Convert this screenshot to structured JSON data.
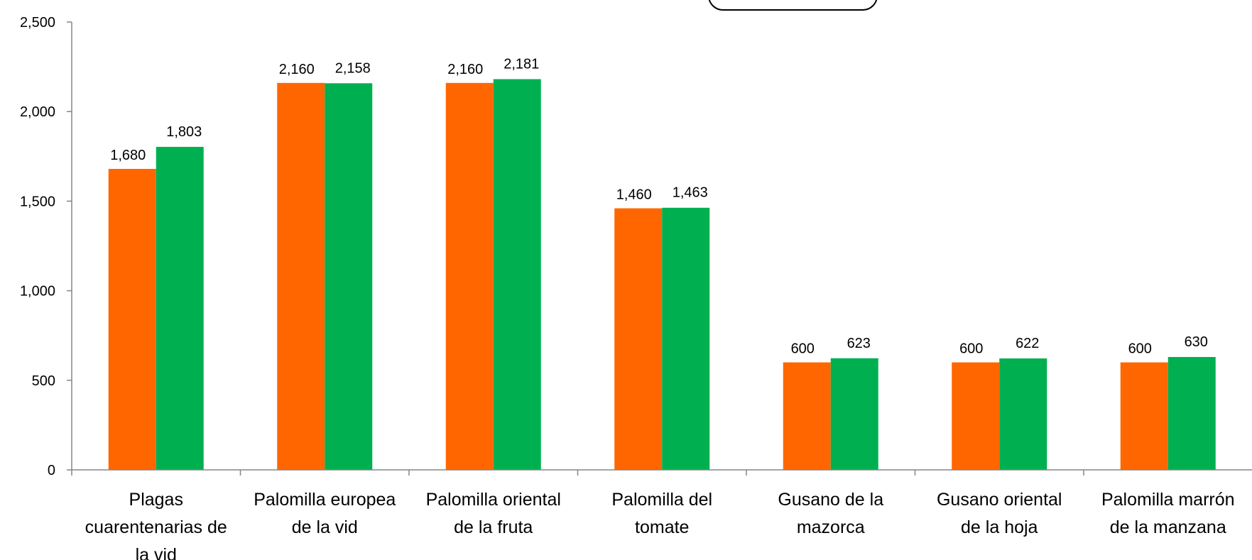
{
  "chart_data": {
    "type": "bar",
    "title": "",
    "xlabel": "",
    "ylabel": "",
    "ylim": [
      0,
      2500
    ],
    "yticks": [
      0,
      500,
      1000,
      1500,
      2000,
      2500
    ],
    "ytick_labels": [
      "0",
      "500",
      "1,000",
      "1,500",
      "2,000",
      "2,500"
    ],
    "grid": false,
    "legend": "none",
    "categories": [
      "Plagas cuarentenarias de la vid",
      "Palomilla europea de la vid",
      "Palomilla oriental de la fruta",
      "Palomilla del tomate",
      "Gusano de la mazorca",
      "Gusano oriental de la hoja",
      "Palomilla marrón de la manzana"
    ],
    "category_lines": [
      [
        "Plagas",
        "cuarentenarias de",
        "la vid"
      ],
      [
        "Palomilla europea",
        "de la vid"
      ],
      [
        "Palomilla oriental",
        "de la fruta"
      ],
      [
        "Palomilla del",
        "tomate"
      ],
      [
        "Gusano de la",
        "mazorca"
      ],
      [
        "Gusano oriental",
        "de la hoja"
      ],
      [
        "Palomilla marrón",
        "de la manzana"
      ]
    ],
    "series": [
      {
        "color": "#ff6600",
        "values": [
          1680,
          2160,
          2160,
          1460,
          600,
          600,
          600
        ],
        "labels": [
          "1,680",
          "2,160",
          "2,160",
          "1,460",
          "600",
          "600",
          "600"
        ]
      },
      {
        "color": "#00b050",
        "values": [
          1803,
          2158,
          2181,
          1463,
          623,
          622,
          630
        ],
        "labels": [
          "1,803",
          "2,158",
          "2,181",
          "1,463",
          "623",
          "622",
          "630"
        ]
      }
    ]
  }
}
